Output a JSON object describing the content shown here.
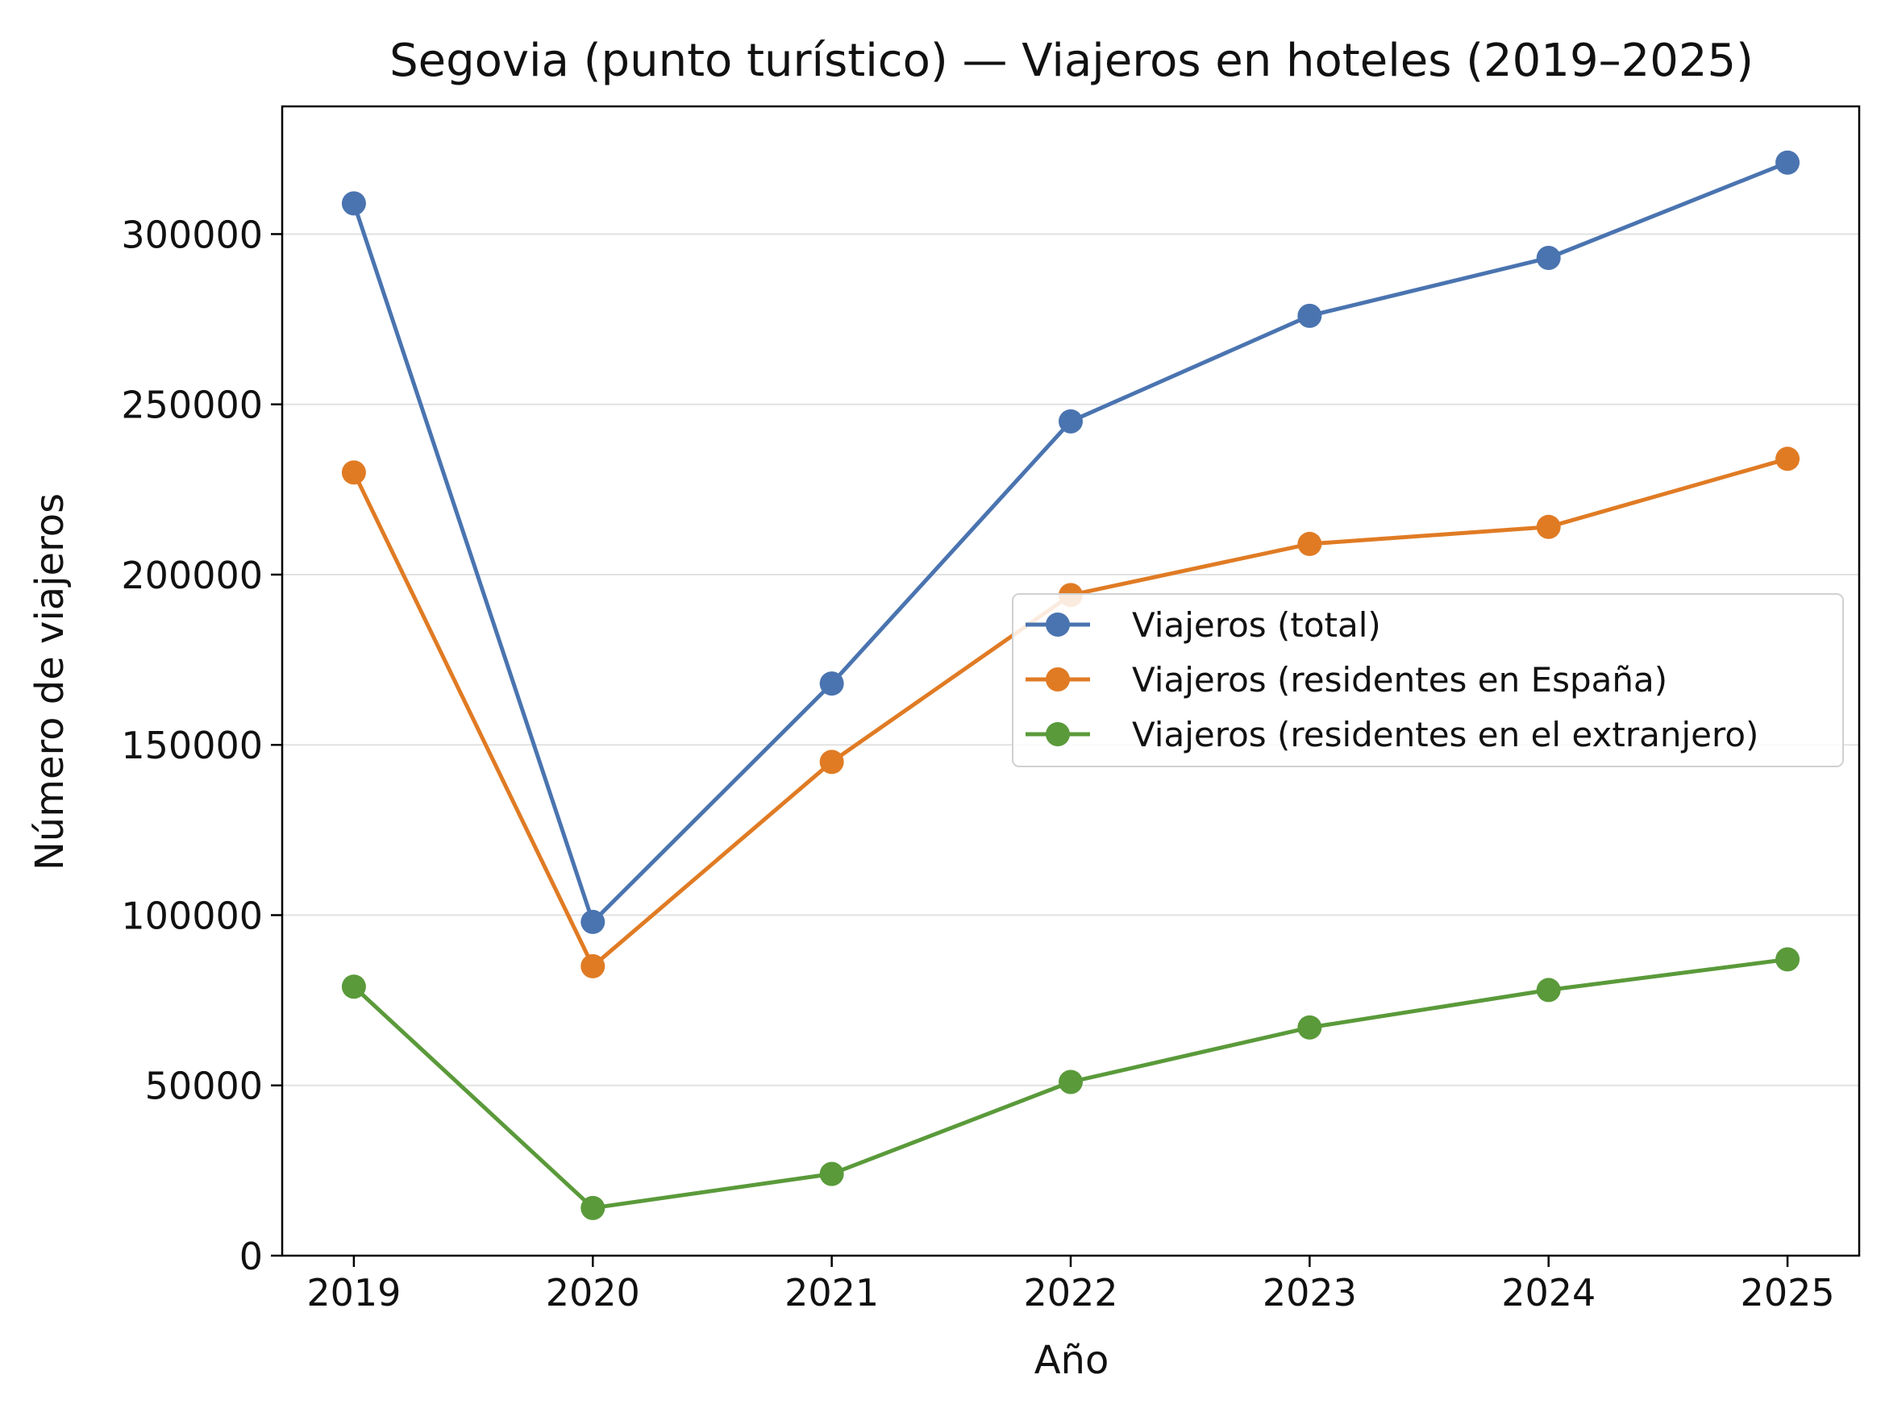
{
  "chart_data": {
    "type": "line",
    "title": "Segovia (punto turístico) — Viajeros en hoteles (2019–2025)",
    "xlabel": "Año",
    "ylabel": "Número de viajeros",
    "x": [
      2019,
      2020,
      2021,
      2022,
      2023,
      2024,
      2025
    ],
    "xlim": [
      2018.7,
      2025.3
    ],
    "ylim": [
      0,
      337500
    ],
    "yticks": [
      0,
      50000,
      100000,
      150000,
      200000,
      250000,
      300000
    ],
    "grid": "horizontal",
    "legend_position": "center-right",
    "series": [
      {
        "name": "Viajeros (total)",
        "color": "#4a74b0",
        "values": [
          309000,
          98000,
          168000,
          245000,
          276000,
          293000,
          321000
        ]
      },
      {
        "name": "Viajeros (residentes en España)",
        "color": "#e07b24",
        "values": [
          230000,
          85000,
          145000,
          194000,
          209000,
          214000,
          234000
        ]
      },
      {
        "name": "Viajeros (residentes en el extranjero)",
        "color": "#5a9a3a",
        "values": [
          79000,
          14000,
          24000,
          51000,
          67000,
          78000,
          87000
        ]
      }
    ]
  }
}
